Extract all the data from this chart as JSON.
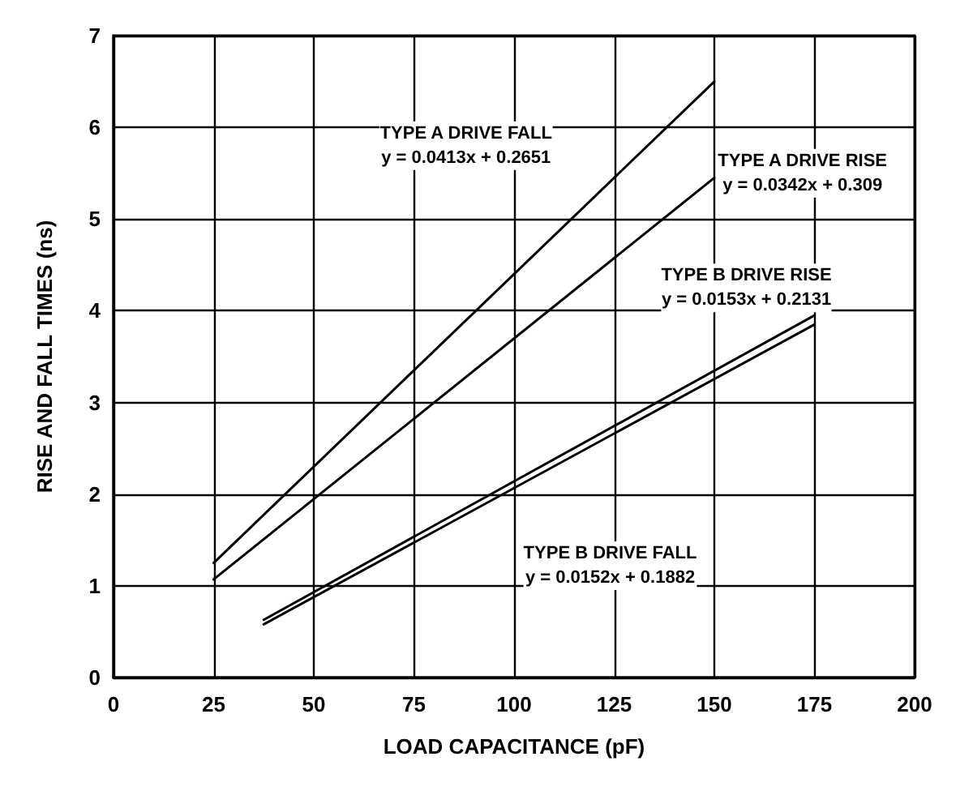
{
  "chart_data": {
    "type": "line",
    "xlabel": "LOAD CAPACITANCE (pF)",
    "ylabel": "RISE AND FALL TIMES (ns)",
    "series": [
      {
        "color": "#000000",
        "x": [
          25,
          150
        ],
        "values": [
          1.25,
          6.5
        ]
      },
      {
        "color": "#000000",
        "x": [
          25,
          150
        ],
        "values": [
          1.07,
          5.45
        ]
      },
      {
        "color": "#000000",
        "x": [
          37.5,
          175
        ],
        "values": [
          0.63,
          3.95
        ]
      },
      {
        "color": "#000000",
        "x": [
          37.5,
          175
        ],
        "values": [
          0.58,
          3.85
        ]
      }
    ],
    "xlim": [
      0,
      200
    ],
    "xticks": [
      0,
      25,
      50,
      75,
      100,
      125,
      150,
      175,
      200
    ],
    "ylim": [
      0,
      7
    ],
    "yticks": [
      0,
      1,
      2,
      3,
      4,
      5,
      6,
      7
    ],
    "grid": true,
    "marker": "none",
    "line_style": "solid",
    "annotations": [
      "TYPE A DRIVE FALL\ny = 0.0413x + 0.2651",
      "TYPE A DRIVE RISE\ny = 0.0342x + 0.309",
      "TYPE B DRIVE RISE\ny = 0.0153x + 0.2131",
      "TYPE B DRIVE FALL\ny = 0.0152x + 0.1882"
    ]
  }
}
